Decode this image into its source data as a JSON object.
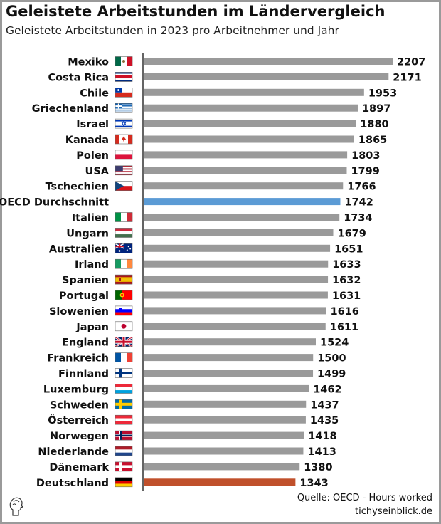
{
  "title": "Geleistete Arbeitstunden im Ländervergleich",
  "subtitle": "Geleistete Arbeitstunden in 2023 pro Arbeitnehmer und Jahr",
  "source": "Quelle: OECD - Hours worked",
  "site": "tichyseinblick.de",
  "colors": {
    "bar": "#9a9a9a",
    "oecd": "#5b9bd5",
    "deutschland": "#c0502b",
    "axis": "#111111"
  },
  "chart_data": {
    "type": "bar",
    "orientation": "horizontal",
    "xlim": [
      0,
      2207
    ],
    "categories": [
      "Mexiko",
      "Costa Rica",
      "Chile",
      "Griechenland",
      "Israel",
      "Kanada",
      "Polen",
      "USA",
      "Tschechien",
      "OECD Durchschnitt",
      "Italien",
      "Ungarn",
      "Australien",
      "Irland",
      "Spanien",
      "Portugal",
      "Slowenien",
      "Japan",
      "England",
      "Frankreich",
      "Finnland",
      "Luxemburg",
      "Schweden",
      "Österreich",
      "Norwegen",
      "Niederlande",
      "Dänemark",
      "Deutschland"
    ],
    "values": [
      2207,
      2171,
      1953,
      1897,
      1880,
      1865,
      1803,
      1799,
      1766,
      1742,
      1734,
      1679,
      1651,
      1633,
      1632,
      1631,
      1616,
      1611,
      1524,
      1500,
      1499,
      1462,
      1437,
      1435,
      1418,
      1413,
      1380,
      1343
    ],
    "flags": [
      "mx-flag-icon",
      "cr-flag-icon",
      "cl-flag-icon",
      "gr-flag-icon",
      "il-flag-icon",
      "ca-flag-icon",
      "pl-flag-icon",
      "us-flag-icon",
      "cz-flag-icon",
      "",
      "it-flag-icon",
      "hu-flag-icon",
      "au-flag-icon",
      "ie-flag-icon",
      "es-flag-icon",
      "pt-flag-icon",
      "si-flag-icon",
      "jp-flag-icon",
      "gb-flag-icon",
      "fr-flag-icon",
      "fi-flag-icon",
      "lu-flag-icon",
      "se-flag-icon",
      "at-flag-icon",
      "no-flag-icon",
      "nl-flag-icon",
      "dk-flag-icon",
      "de-flag-icon"
    ],
    "highlight": {
      "OECD Durchschnitt": "oecd",
      "Deutschland": "deutschland"
    },
    "grid": false,
    "legend": "none"
  }
}
